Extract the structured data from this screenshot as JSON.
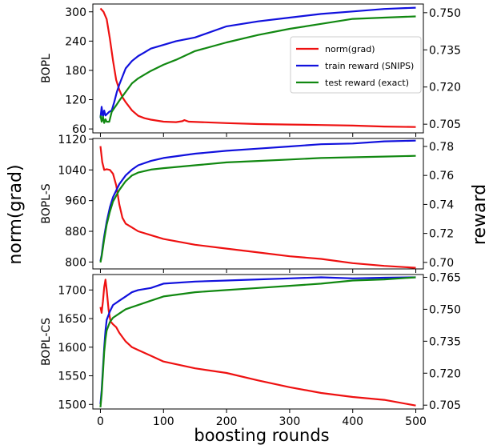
{
  "figure": {
    "left_label": "norm(grad)",
    "right_label": "reward",
    "x_label": "boosting rounds"
  },
  "colors": {
    "norm": "#ee1111",
    "train": "#1111dd",
    "test": "#118811"
  },
  "chart_data": [
    {
      "type": "line",
      "panel_label": "BOPL",
      "xlim": [
        -12,
        512
      ],
      "x_ticks": [
        0,
        100,
        200,
        300,
        400,
        500
      ],
      "ylim_left": [
        52,
        316
      ],
      "yticks_left": [
        60,
        120,
        180,
        240,
        300
      ],
      "ylim_right": [
        0.7015,
        0.7535
      ],
      "yticks_right": [
        "0.705",
        "0.720",
        "0.735",
        "0.750"
      ],
      "legend": {
        "position": "upper-right",
        "entries": [
          "norm(grad)",
          "train reward (SNIPS)",
          "test reward (exact)"
        ]
      },
      "series": [
        {
          "name": "norm(grad)",
          "axis": "left",
          "color_key": "norm",
          "x": [
            0,
            5,
            10,
            15,
            20,
            25,
            30,
            35,
            40,
            50,
            60,
            70,
            80,
            100,
            120,
            130,
            133,
            140,
            160,
            200,
            250,
            300,
            350,
            400,
            450,
            500
          ],
          "y": [
            307,
            300,
            285,
            245,
            200,
            160,
            140,
            125,
            115,
            98,
            87,
            82,
            79,
            75,
            74,
            76,
            78,
            75,
            74,
            72,
            70,
            69,
            68,
            67,
            65,
            64
          ]
        },
        {
          "name": "train reward (SNIPS)",
          "axis": "right",
          "color_key": "train",
          "x": [
            0,
            2,
            4,
            6,
            8,
            10,
            14,
            18,
            22,
            26,
            30,
            40,
            50,
            60,
            70,
            80,
            100,
            120,
            150,
            200,
            250,
            300,
            350,
            400,
            450,
            500
          ],
          "y": [
            0.7075,
            0.712,
            0.708,
            0.7105,
            0.7085,
            0.709,
            0.71,
            0.7105,
            0.714,
            0.718,
            0.721,
            0.7275,
            0.7305,
            0.7325,
            0.734,
            0.7355,
            0.737,
            0.7385,
            0.74,
            0.7445,
            0.7465,
            0.748,
            0.7495,
            0.7505,
            0.7515,
            0.752
          ]
        },
        {
          "name": "test reward (exact)",
          "axis": "right",
          "color_key": "test",
          "x": [
            0,
            2,
            4,
            6,
            8,
            10,
            14,
            18,
            22,
            26,
            30,
            40,
            50,
            60,
            70,
            80,
            100,
            120,
            150,
            200,
            250,
            300,
            350,
            400,
            450,
            500
          ],
          "y": [
            0.7085,
            0.706,
            0.708,
            0.7055,
            0.707,
            0.706,
            0.706,
            0.71,
            0.7115,
            0.713,
            0.7145,
            0.718,
            0.7215,
            0.7235,
            0.725,
            0.7265,
            0.729,
            0.731,
            0.7345,
            0.738,
            0.741,
            0.7435,
            0.7455,
            0.7475,
            0.748,
            0.7485
          ]
        }
      ]
    },
    {
      "type": "line",
      "panel_label": "BOPL-S",
      "xlim": [
        -12,
        512
      ],
      "x_ticks": [
        0,
        100,
        200,
        300,
        400,
        500
      ],
      "ylim_left": [
        782,
        1122
      ],
      "yticks_left": [
        800,
        880,
        960,
        1040,
        1120
      ],
      "ylim_right": [
        0.6955,
        0.7855
      ],
      "yticks_right": [
        "0.70",
        "0.72",
        "0.74",
        "0.76",
        "0.78"
      ],
      "series": [
        {
          "name": "norm(grad)",
          "axis": "left",
          "color_key": "norm",
          "x": [
            0,
            3,
            6,
            10,
            15,
            20,
            25,
            30,
            35,
            40,
            50,
            60,
            80,
            100,
            150,
            200,
            250,
            300,
            350,
            400,
            450,
            500
          ],
          "y": [
            1102,
            1060,
            1040,
            1042,
            1040,
            1030,
            1000,
            950,
            915,
            900,
            890,
            880,
            870,
            860,
            845,
            835,
            825,
            815,
            808,
            797,
            790,
            785
          ]
        },
        {
          "name": "train reward (SNIPS)",
          "axis": "right",
          "color_key": "train",
          "x": [
            0,
            2,
            4,
            6,
            10,
            15,
            20,
            30,
            40,
            50,
            60,
            80,
            100,
            150,
            200,
            250,
            300,
            350,
            400,
            450,
            500
          ],
          "y": [
            0.701,
            0.705,
            0.712,
            0.718,
            0.728,
            0.738,
            0.745,
            0.754,
            0.76,
            0.764,
            0.767,
            0.77,
            0.772,
            0.775,
            0.777,
            0.7785,
            0.78,
            0.7815,
            0.782,
            0.7835,
            0.784
          ]
        },
        {
          "name": "test reward (exact)",
          "axis": "right",
          "color_key": "test",
          "x": [
            0,
            2,
            4,
            6,
            10,
            15,
            20,
            30,
            40,
            50,
            60,
            80,
            100,
            150,
            200,
            250,
            300,
            350,
            400,
            450,
            500
          ],
          "y": [
            0.7,
            0.704,
            0.71,
            0.716,
            0.726,
            0.735,
            0.742,
            0.75,
            0.756,
            0.76,
            0.762,
            0.764,
            0.765,
            0.767,
            0.769,
            0.77,
            0.771,
            0.772,
            0.7725,
            0.773,
            0.7735
          ]
        }
      ]
    },
    {
      "type": "line",
      "panel_label": "BOPL-CS",
      "xlim": [
        -12,
        512
      ],
      "x_ticks": [
        0,
        100,
        200,
        300,
        400,
        500
      ],
      "ylim_left": [
        1492,
        1727
      ],
      "yticks_left": [
        1500,
        1550,
        1600,
        1650,
        1700
      ],
      "ylim_right": [
        0.7032,
        0.7663
      ],
      "yticks_right": [
        "0.705",
        "0.720",
        "0.735",
        "0.750",
        "0.765"
      ],
      "series": [
        {
          "name": "norm(grad)",
          "axis": "left",
          "color_key": "norm",
          "x": [
            0,
            2,
            4,
            6,
            8,
            10,
            13,
            16,
            20,
            25,
            30,
            40,
            50,
            60,
            80,
            100,
            150,
            200,
            250,
            300,
            350,
            400,
            450,
            500
          ],
          "y": [
            1670,
            1660,
            1680,
            1705,
            1718,
            1700,
            1665,
            1645,
            1640,
            1635,
            1625,
            1610,
            1600,
            1595,
            1585,
            1575,
            1563,
            1555,
            1542,
            1530,
            1520,
            1513,
            1508,
            1498
          ]
        },
        {
          "name": "train reward (SNIPS)",
          "axis": "right",
          "color_key": "train",
          "x": [
            0,
            2,
            4,
            6,
            8,
            10,
            15,
            20,
            30,
            40,
            50,
            60,
            80,
            100,
            150,
            200,
            250,
            300,
            350,
            400,
            450,
            500
          ],
          "y": [
            0.7055,
            0.712,
            0.722,
            0.732,
            0.74,
            0.745,
            0.749,
            0.752,
            0.754,
            0.756,
            0.758,
            0.759,
            0.76,
            0.762,
            0.763,
            0.7635,
            0.764,
            0.7645,
            0.765,
            0.7645,
            0.7648,
            0.765
          ]
        },
        {
          "name": "test reward (exact)",
          "axis": "right",
          "color_key": "test",
          "x": [
            0,
            2,
            4,
            6,
            8,
            10,
            15,
            20,
            30,
            40,
            50,
            60,
            80,
            100,
            150,
            200,
            250,
            300,
            350,
            400,
            450,
            500
          ],
          "y": [
            0.704,
            0.71,
            0.72,
            0.73,
            0.736,
            0.74,
            0.744,
            0.746,
            0.748,
            0.75,
            0.751,
            0.752,
            0.754,
            0.756,
            0.758,
            0.759,
            0.76,
            0.761,
            0.762,
            0.7635,
            0.764,
            0.765
          ]
        }
      ]
    }
  ]
}
